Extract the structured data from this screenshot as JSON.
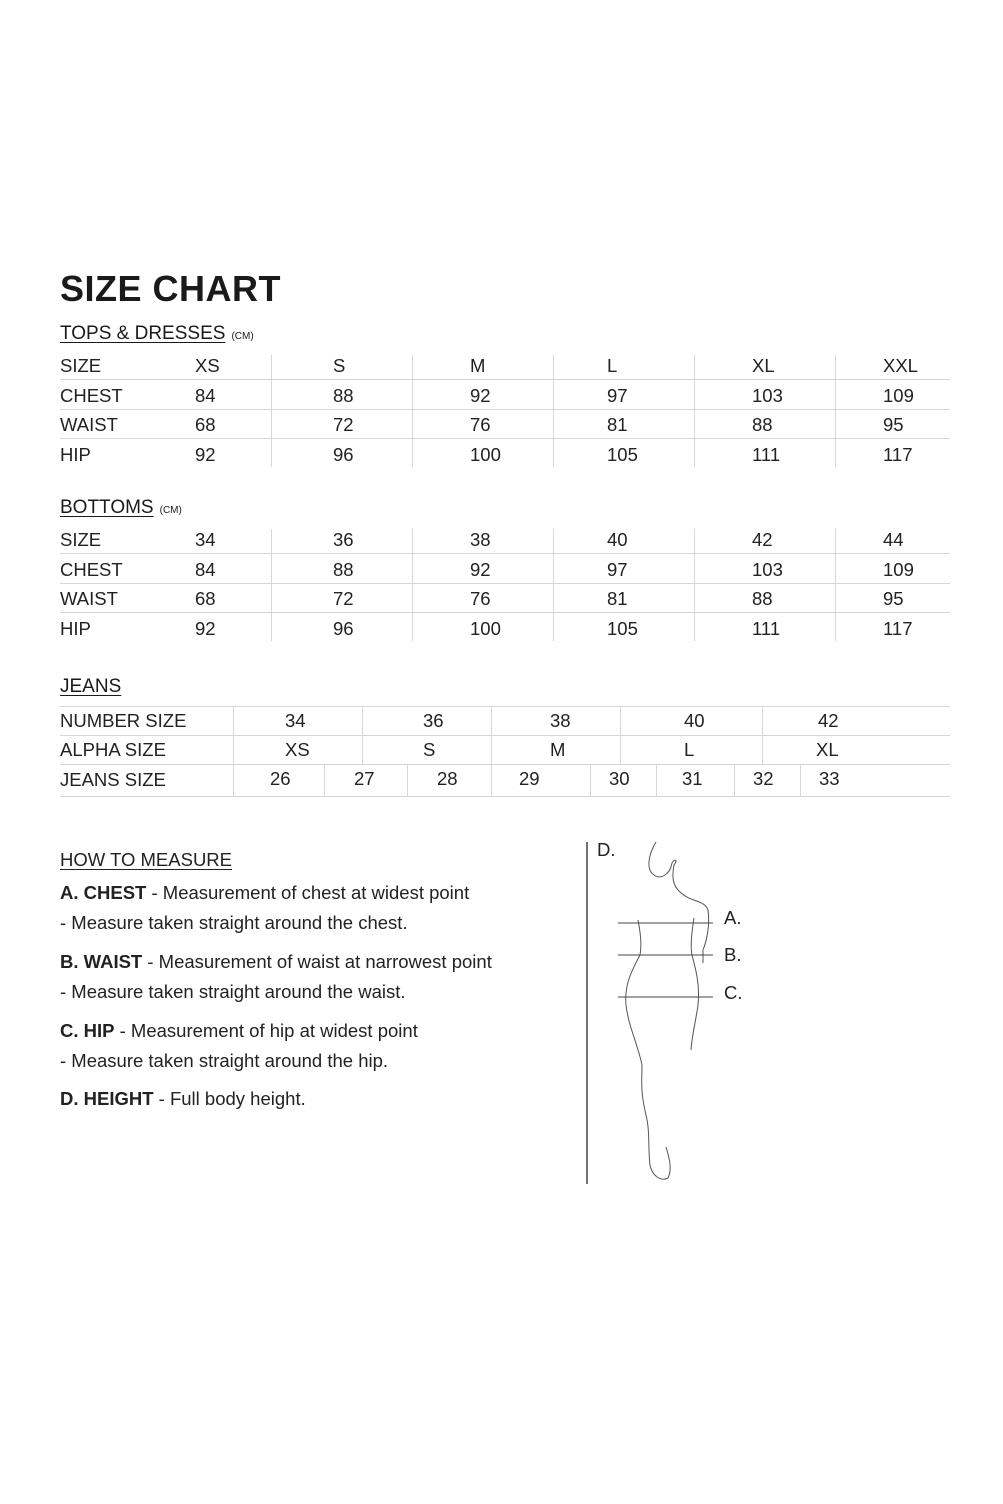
{
  "title": "SIZE CHART",
  "tops": {
    "heading": "TOPS & DRESSES",
    "unit": "(CM)",
    "rows": [
      [
        "SIZE",
        "XS",
        "S",
        "M",
        "L",
        "XL",
        "XXL"
      ],
      [
        "CHEST",
        "84",
        "88",
        "92",
        "97",
        "103",
        "109"
      ],
      [
        "WAIST",
        "68",
        "72",
        "76",
        "81",
        "88",
        "95"
      ],
      [
        "HIP",
        "92",
        "96",
        "100",
        "105",
        "111",
        "117"
      ]
    ]
  },
  "bottoms": {
    "heading": "BOTTOMS",
    "unit": "(CM)",
    "rows": [
      [
        "SIZE",
        "34",
        "36",
        "38",
        "40",
        "42",
        "44"
      ],
      [
        "CHEST",
        "84",
        "88",
        "92",
        "97",
        "103",
        "109"
      ],
      [
        "WAIST",
        "68",
        "72",
        "76",
        "81",
        "88",
        "95"
      ],
      [
        "HIP",
        "92",
        "96",
        "100",
        "105",
        "111",
        "117"
      ]
    ]
  },
  "jeans": {
    "heading": "JEANS",
    "number_size": {
      "label": "NUMBER SIZE",
      "values": [
        "34",
        "36",
        "38",
        "40",
        "42"
      ]
    },
    "alpha_size": {
      "label": "ALPHA SIZE",
      "values": [
        "XS",
        "S",
        "M",
        "L",
        "XL"
      ]
    },
    "jeans_size": {
      "label": "JEANS SIZE",
      "values": [
        "26",
        "27",
        "28",
        "29",
        "30",
        "31",
        "32",
        "33"
      ]
    }
  },
  "how_to_measure": {
    "heading": "HOW TO MEASURE",
    "items": [
      {
        "term": "A. CHEST",
        "desc": " - Measurement of chest at widest point",
        "note": "- Measure taken straight around the chest."
      },
      {
        "term": "B. WAIST",
        "desc": " - Measurement of waist at narrowest point",
        "note": "- Measure taken straight around the waist."
      },
      {
        "term": "C. HIP",
        "desc": " - Measurement of hip at widest point",
        "note": "- Measure taken straight around the hip."
      },
      {
        "term": "D. HEIGHT",
        "desc": " - Full body height.",
        "note": ""
      }
    ]
  },
  "figure": {
    "labels": [
      "A.",
      "B.",
      "C.",
      "D."
    ]
  }
}
